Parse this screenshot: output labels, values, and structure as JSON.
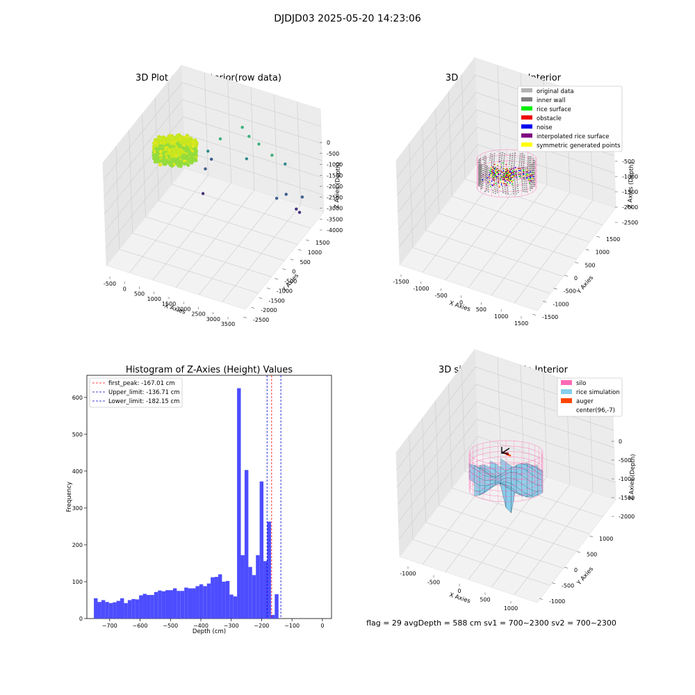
{
  "figure_title": "DJDJD03 2025-05-20 14:23:06",
  "status_line": "flag = 29  avgDepth = 588 cm  sv1 = 700~2300  sv2 = 700~2300",
  "chart_data": [
    {
      "type": "scatter",
      "title": "3D Plot of Silo Interior(row data)",
      "xlabel": "X Axies",
      "ylabel": "Y Axies",
      "zlabel": "Z Axies (Depth)",
      "x_ticks": [
        "-500",
        "0",
        "500",
        "1000",
        "1500",
        "2000",
        "2500",
        "3000",
        "3500"
      ],
      "y_ticks": [
        "-2500",
        "-2000",
        "-1500",
        "-1000",
        "-500",
        "0",
        "500",
        "1000",
        "1500"
      ],
      "z_ticks": [
        "-4000",
        "-3500",
        "-3000",
        "-2500",
        "-2000",
        "-1500",
        "-1000",
        "-500",
        "0"
      ],
      "xlim": [
        -600,
        3700
      ],
      "ylim": [
        -2600,
        1700
      ],
      "zlim": [
        -4200,
        200
      ],
      "grid": true,
      "cluster": {
        "description_only": false,
        "x_range": [
          -300,
          600
        ],
        "y_range": [
          -300,
          600
        ],
        "z_range": [
          -1000,
          -50
        ]
      },
      "points": [
        {
          "x": 1700,
          "y": 0,
          "z": -700
        },
        {
          "x": 1900,
          "y": 0,
          "z": -1000
        },
        {
          "x": 2200,
          "y": 0,
          "z": -1200
        },
        {
          "x": 2600,
          "y": 0,
          "z": -1500
        },
        {
          "x": 3000,
          "y": 0,
          "z": -1700
        },
        {
          "x": 1000,
          "y": 0,
          "z": -1500
        },
        {
          "x": 1800,
          "y": 0,
          "z": -2000
        },
        {
          "x": 600,
          "y": 0,
          "z": -2200
        },
        {
          "x": 700,
          "y": 0,
          "z": -2500
        },
        {
          "x": 500,
          "y": 0,
          "z": -3000
        },
        {
          "x": 3000,
          "y": 0,
          "z": -3000
        },
        {
          "x": 2700,
          "y": 0,
          "z": -3300
        },
        {
          "x": 3300,
          "y": 0,
          "z": -3500
        },
        {
          "x": 3400,
          "y": 0,
          "z": -3600
        },
        {
          "x": 3500,
          "y": 0,
          "z": -2900
        },
        {
          "x": 400,
          "y": 0,
          "z": -4100
        }
      ]
    },
    {
      "type": "scatter",
      "title": "3D classify of Silo Interior",
      "xlabel": "X Axies",
      "ylabel": "Y Axies",
      "zlabel": "Z Axies (Depth)",
      "x_ticks": [
        "-1500",
        "-1000",
        "-500",
        "0",
        "500",
        "1000",
        "1500"
      ],
      "y_ticks": [
        "-1500",
        "-1000",
        "-500",
        "0",
        "500",
        "1000",
        "1500"
      ],
      "z_ticks": [
        "-2500",
        "-2000",
        "-1500",
        "-1000",
        "-500"
      ],
      "xlim": [
        -1600,
        1600
      ],
      "ylim": [
        -1600,
        1600
      ],
      "zlim": [
        -2800,
        -200
      ],
      "grid": true,
      "legend_position": "top-right",
      "legend": [
        {
          "label": "original data",
          "color": "#b3b3b3"
        },
        {
          "label": "inner wall",
          "color": "#808080"
        },
        {
          "label": "rice surface",
          "color": "#00ee00"
        },
        {
          "label": "obstacle",
          "color": "#ee0000"
        },
        {
          "label": "noise",
          "color": "#0000ee"
        },
        {
          "label": "interpolated rice surface",
          "color": "#800080"
        },
        {
          "label": "symmetric generated points",
          "color": "#ffff00"
        }
      ]
    },
    {
      "type": "bar",
      "title": "Histogram of Z-Axies (Height) Values",
      "xlabel": "Depth (cm)",
      "ylabel": "Frequency",
      "xlim": [
        -775,
        30
      ],
      "ylim": [
        0,
        660
      ],
      "x_ticks": [
        -700,
        -600,
        -500,
        -400,
        -300,
        -200,
        -100,
        0
      ],
      "y_ticks": [
        0,
        100,
        200,
        300,
        400,
        500,
        600
      ],
      "bin_start": -752,
      "bin_width": 12.4,
      "values": [
        55,
        45,
        50,
        45,
        42,
        44,
        48,
        55,
        42,
        50,
        53,
        52,
        63,
        67,
        64,
        64,
        72,
        76,
        74,
        77,
        77,
        82,
        75,
        75,
        84,
        82,
        82,
        88,
        93,
        88,
        95,
        112,
        113,
        120,
        100,
        102,
        65,
        60,
        625,
        172,
        403,
        140,
        118,
        172,
        372,
        156,
        263,
        10,
        66
      ],
      "bar_color": "#4d4dff",
      "legend_position": "top-left",
      "lines": [
        {
          "label": "first_peak: -167.01 cm",
          "value": -167.01,
          "color": "#ff0000"
        },
        {
          "label": "Upper_limit: -136.71 cm",
          "value": -136.71,
          "color": "#0000cc"
        },
        {
          "label": "Lower_limit: -182.15 cm",
          "value": -182.15,
          "color": "#0000cc"
        }
      ]
    },
    {
      "type": "surface",
      "title": "3D simulation of Silo Interior",
      "xlabel": "X Axies",
      "ylabel": "Y Axies",
      "zlabel": "Z Axies (Depth)",
      "x_ticks": [
        "-1000",
        "-500",
        "0",
        "500",
        "1000"
      ],
      "y_ticks": [
        "-1000",
        "-500",
        "0",
        "500",
        "1000"
      ],
      "z_ticks": [
        "-2000",
        "-1500",
        "-1000",
        "-500",
        "0"
      ],
      "xlim": [
        -1200,
        1200
      ],
      "ylim": [
        -1200,
        1200
      ],
      "zlim": [
        -2200,
        200
      ],
      "grid": true,
      "legend_position": "top-right",
      "legend": [
        {
          "label": "silo",
          "color": "#ff69b4"
        },
        {
          "label": "rice simulation",
          "color": "#87ceeb"
        },
        {
          "label": "auger",
          "color": "#ff4500"
        },
        {
          "label": "center(96,-7)",
          "color": ""
        }
      ]
    }
  ]
}
